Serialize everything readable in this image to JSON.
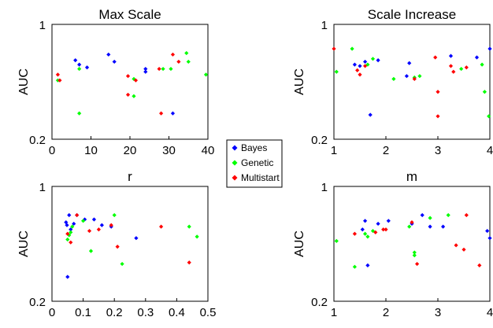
{
  "chart_data": [
    {
      "type": "scatter",
      "title": "Max Scale",
      "ylabel": "AUC",
      "xlim": [
        0,
        40
      ],
      "ylim": [
        0.2,
        1
      ],
      "xticks": [
        "0",
        "10",
        "20",
        "30",
        "40"
      ],
      "yticks": [
        "0.2",
        "1"
      ],
      "series": [
        {
          "name": "Bayes",
          "color": "#0000ff",
          "points": [
            [
              6,
              0.75
            ],
            [
              7,
              0.72
            ],
            [
              9,
              0.7
            ],
            [
              14.5,
              0.79
            ],
            [
              16,
              0.74
            ],
            [
              24,
              0.69
            ],
            [
              24,
              0.67
            ],
            [
              31,
              0.38
            ]
          ]
        },
        {
          "name": "Genetic",
          "color": "#00ff00",
          "points": [
            [
              1.5,
              0.61
            ],
            [
              7,
              0.69
            ],
            [
              7,
              0.38
            ],
            [
              21,
              0.62
            ],
            [
              21,
              0.5
            ],
            [
              28.5,
              0.69
            ],
            [
              30.5,
              0.69
            ],
            [
              34.5,
              0.8
            ],
            [
              35,
              0.74
            ],
            [
              39.5,
              0.65
            ]
          ]
        },
        {
          "name": "Multistart",
          "color": "#ff0000",
          "points": [
            [
              1.5,
              0.65
            ],
            [
              2,
              0.61
            ],
            [
              19.5,
              0.64
            ],
            [
              19.5,
              0.51
            ],
            [
              21.5,
              0.61
            ],
            [
              27.5,
              0.69
            ],
            [
              28,
              0.38
            ],
            [
              31,
              0.79
            ],
            [
              32.5,
              0.74
            ]
          ]
        }
      ]
    },
    {
      "type": "scatter",
      "title": "Scale Increase",
      "ylabel": "AUC",
      "xlim": [
        1,
        4
      ],
      "ylim": [
        0.2,
        1
      ],
      "xticks": [
        "1",
        "2",
        "3",
        "4"
      ],
      "yticks": [
        "0.2",
        "1"
      ],
      "series": [
        {
          "name": "Bayes",
          "color": "#0000ff",
          "points": [
            [
              1.4,
              0.72
            ],
            [
              1.5,
              0.71
            ],
            [
              1.6,
              0.74
            ],
            [
              1.7,
              0.37
            ],
            [
              1.85,
              0.75
            ],
            [
              2.4,
              0.64
            ],
            [
              2.45,
              0.73
            ],
            [
              3.25,
              0.78
            ],
            [
              3.75,
              0.77
            ],
            [
              4.0,
              0.83
            ]
          ]
        },
        {
          "name": "Genetic",
          "color": "#00ff00",
          "points": [
            [
              1.05,
              0.67
            ],
            [
              1.35,
              0.83
            ],
            [
              1.65,
              0.72
            ],
            [
              1.75,
              0.76
            ],
            [
              2.15,
              0.62
            ],
            [
              2.55,
              0.63
            ],
            [
              2.65,
              0.64
            ],
            [
              3.45,
              0.69
            ],
            [
              3.85,
              0.72
            ],
            [
              3.9,
              0.53
            ],
            [
              3.98,
              0.36
            ]
          ]
        },
        {
          "name": "Multistart",
          "color": "#ff0000",
          "points": [
            [
              1.0,
              0.83
            ],
            [
              1.45,
              0.68
            ],
            [
              1.5,
              0.65
            ],
            [
              1.6,
              0.71
            ],
            [
              2.55,
              0.62
            ],
            [
              2.95,
              0.77
            ],
            [
              3.0,
              0.53
            ],
            [
              3.0,
              0.36
            ],
            [
              3.25,
              0.71
            ],
            [
              3.3,
              0.67
            ],
            [
              3.55,
              0.7
            ]
          ]
        }
      ]
    },
    {
      "type": "scatter",
      "title": "r",
      "ylabel": "AUC",
      "xlim": [
        0,
        0.5
      ],
      "ylim": [
        0.2,
        1
      ],
      "xticks": [
        "0",
        "0.1",
        "0.2",
        "0.3",
        "0.4",
        "0.5"
      ],
      "yticks": [
        "0.2",
        "1"
      ],
      "series": [
        {
          "name": "Bayes",
          "color": "#0000ff",
          "points": [
            [
              0.045,
              0.75
            ],
            [
              0.048,
              0.73
            ],
            [
              0.05,
              0.37
            ],
            [
              0.055,
              0.8
            ],
            [
              0.06,
              0.7
            ],
            [
              0.07,
              0.74
            ],
            [
              0.08,
              0.8
            ],
            [
              0.105,
              0.77
            ],
            [
              0.135,
              0.77
            ],
            [
              0.16,
              0.73
            ],
            [
              0.19,
              0.72
            ],
            [
              0.27,
              0.64
            ]
          ]
        },
        {
          "name": "Genetic",
          "color": "#00ff00",
          "points": [
            [
              0.05,
              0.63
            ],
            [
              0.055,
              0.66
            ],
            [
              0.06,
              0.68
            ],
            [
              0.065,
              0.72
            ],
            [
              0.1,
              0.76
            ],
            [
              0.125,
              0.55
            ],
            [
              0.2,
              0.8
            ],
            [
              0.225,
              0.46
            ],
            [
              0.44,
              0.72
            ],
            [
              0.465,
              0.65
            ]
          ]
        },
        {
          "name": "Multistart",
          "color": "#ff0000",
          "points": [
            [
              0.05,
              0.67
            ],
            [
              0.06,
              0.61
            ],
            [
              0.08,
              0.8
            ],
            [
              0.12,
              0.69
            ],
            [
              0.15,
              0.7
            ],
            [
              0.19,
              0.73
            ],
            [
              0.21,
              0.58
            ],
            [
              0.35,
              0.72
            ],
            [
              0.44,
              0.47
            ]
          ]
        }
      ]
    },
    {
      "type": "scatter",
      "title": "m",
      "ylabel": "AUC",
      "xlim": [
        1,
        4
      ],
      "ylim": [
        0.2,
        1
      ],
      "xticks": [
        "1",
        "2",
        "3",
        "4"
      ],
      "yticks": [
        "0.2",
        "1"
      ],
      "series": [
        {
          "name": "Bayes",
          "color": "#0000ff",
          "points": [
            [
              1.55,
              0.7
            ],
            [
              1.6,
              0.76
            ],
            [
              1.65,
              0.45
            ],
            [
              1.85,
              0.74
            ],
            [
              2.05,
              0.76
            ],
            [
              2.5,
              0.74
            ],
            [
              2.7,
              0.8
            ],
            [
              2.85,
              0.72
            ],
            [
              3.1,
              0.72
            ],
            [
              3.95,
              0.69
            ],
            [
              4.0,
              0.64
            ]
          ]
        },
        {
          "name": "Genetic",
          "color": "#00ff00",
          "points": [
            [
              1.05,
              0.62
            ],
            [
              1.4,
              0.44
            ],
            [
              1.6,
              0.67
            ],
            [
              1.65,
              0.65
            ],
            [
              1.75,
              0.69
            ],
            [
              2.45,
              0.72
            ],
            [
              2.55,
              0.54
            ],
            [
              2.55,
              0.52
            ],
            [
              2.85,
              0.78
            ],
            [
              3.2,
              0.8
            ]
          ]
        },
        {
          "name": "Multistart",
          "color": "#ff0000",
          "points": [
            [
              1.4,
              0.67
            ],
            [
              1.8,
              0.68
            ],
            [
              1.95,
              0.7
            ],
            [
              2.0,
              0.7
            ],
            [
              2.5,
              0.75
            ],
            [
              2.6,
              0.46
            ],
            [
              3.35,
              0.59
            ],
            [
              3.5,
              0.56
            ],
            [
              3.55,
              0.8
            ],
            [
              3.8,
              0.45
            ]
          ]
        }
      ]
    }
  ],
  "legend": {
    "entries": [
      {
        "label": "Bayes",
        "color": "#0000ff"
      },
      {
        "label": "Genetic",
        "color": "#00ff00"
      },
      {
        "label": "Multistart",
        "color": "#ff0000"
      }
    ]
  }
}
